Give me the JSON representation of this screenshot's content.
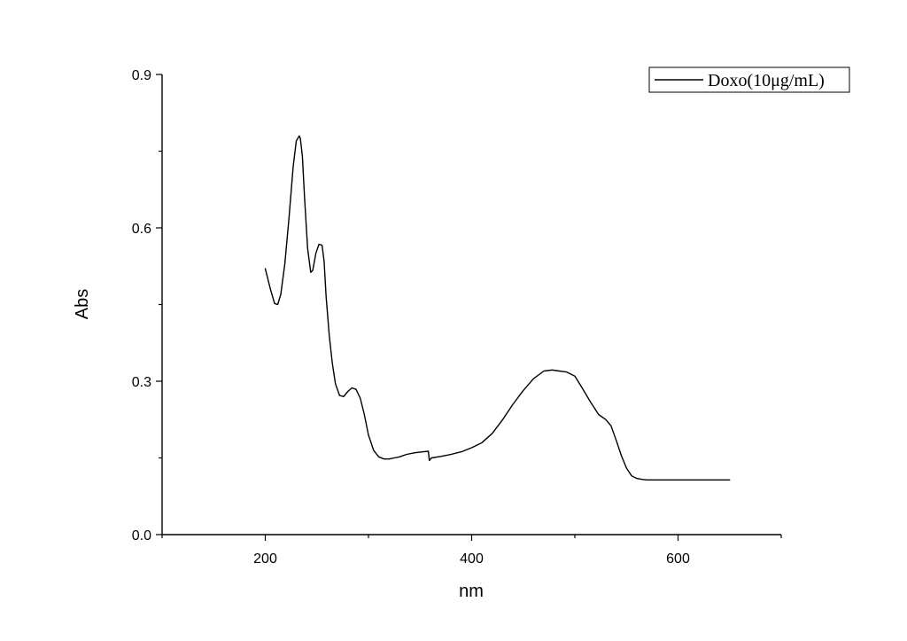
{
  "chart_data": {
    "type": "line",
    "title": "",
    "xlabel": "nm",
    "ylabel": "Abs",
    "xlim": [
      100,
      700
    ],
    "ylim": [
      0,
      0.9
    ],
    "x_ticks": [
      200,
      400,
      600
    ],
    "x_tick_labels": [
      "200",
      "400",
      "600"
    ],
    "y_ticks": [
      0,
      0.3,
      0.6,
      0.9
    ],
    "y_tick_labels": [
      "0.0",
      "0.3",
      "0.6",
      "0.9"
    ],
    "grid": false,
    "legend_position": "top-right",
    "series": [
      {
        "name": "Doxo(10μg/mL)",
        "color": "#000000",
        "x": [
          200,
          205,
          209,
          212,
          215,
          219,
          223,
          227,
          230,
          233,
          234,
          236,
          238,
          241,
          244,
          246,
          249,
          252,
          255,
          257,
          259,
          262,
          265,
          268,
          272,
          276,
          280,
          284,
          288,
          292,
          296,
          300,
          305,
          310,
          315,
          320,
          325,
          330,
          337,
          345,
          353,
          358,
          359,
          361,
          370,
          380,
          390,
          400,
          410,
          420,
          430,
          440,
          450,
          460,
          470,
          478,
          485,
          492,
          500,
          507,
          515,
          523,
          530,
          535,
          540,
          545,
          550,
          555,
          560,
          565,
          570,
          580,
          600,
          620,
          650
        ],
        "y": [
          0.52,
          0.48,
          0.452,
          0.45,
          0.47,
          0.53,
          0.62,
          0.72,
          0.77,
          0.78,
          0.775,
          0.74,
          0.66,
          0.56,
          0.513,
          0.517,
          0.55,
          0.568,
          0.566,
          0.535,
          0.465,
          0.39,
          0.335,
          0.295,
          0.272,
          0.27,
          0.28,
          0.287,
          0.284,
          0.267,
          0.235,
          0.195,
          0.165,
          0.152,
          0.148,
          0.148,
          0.15,
          0.152,
          0.157,
          0.16,
          0.162,
          0.163,
          0.145,
          0.15,
          0.153,
          0.157,
          0.162,
          0.17,
          0.18,
          0.198,
          0.225,
          0.255,
          0.282,
          0.305,
          0.32,
          0.322,
          0.32,
          0.318,
          0.31,
          0.287,
          0.26,
          0.235,
          0.225,
          0.213,
          0.185,
          0.155,
          0.13,
          0.115,
          0.11,
          0.108,
          0.107,
          0.107,
          0.107,
          0.107,
          0.107
        ]
      }
    ]
  }
}
